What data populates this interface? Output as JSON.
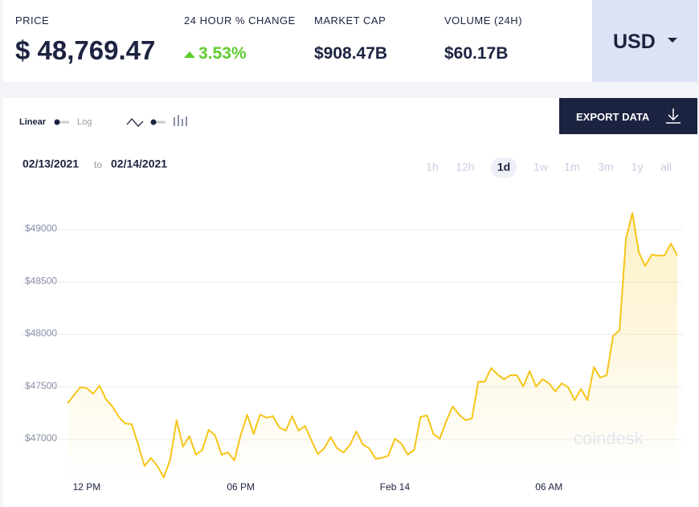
{
  "header": {
    "price_label": "PRICE",
    "price": "$ 48,769.47",
    "change_label": "24 HOUR % CHANGE",
    "change": "3.53%",
    "market_cap_label": "MARKET CAP",
    "market_cap": "$908.47B",
    "volume_label": "VOLUME (24H)",
    "volume": "$60.17B",
    "currency": "USD"
  },
  "controls": {
    "linear": "Linear",
    "log": "Log",
    "export": "EXPORT DATA",
    "date_from": "02/13/2021",
    "date_sep": "to",
    "date_to": "02/14/2021",
    "ranges": [
      "1h",
      "12h",
      "1d",
      "1w",
      "1m",
      "3m",
      "1y",
      "all"
    ],
    "active_range_index": 2
  },
  "chart_data": {
    "type": "line",
    "color": "#f5c518",
    "grid": true,
    "watermark": "coindesk",
    "ylim": [
      46600,
      49400
    ],
    "yticks": [
      {
        "value": 47000,
        "label": "$47000"
      },
      {
        "value": 47500,
        "label": "$47500"
      },
      {
        "value": 48000,
        "label": "$48000"
      },
      {
        "value": 48500,
        "label": "$48500"
      },
      {
        "value": 49000,
        "label": "$49000"
      }
    ],
    "categories": [
      null,
      null,
      null,
      "12 PM",
      null,
      null,
      null,
      null,
      null,
      null,
      null,
      null,
      null,
      null,
      null,
      null,
      null,
      null,
      null,
      null,
      null,
      null,
      null,
      null,
      null,
      null,
      null,
      "06 PM",
      null,
      null,
      null,
      null,
      null,
      null,
      null,
      null,
      null,
      null,
      null,
      null,
      null,
      null,
      null,
      null,
      null,
      null,
      null,
      null,
      null,
      null,
      null,
      "Feb 14",
      null,
      null,
      null,
      null,
      null,
      null,
      null,
      null,
      null,
      null,
      null,
      null,
      null,
      null,
      null,
      null,
      null,
      null,
      null,
      null,
      null,
      null,
      null,
      "06 AM",
      null,
      null,
      null,
      null,
      null,
      null,
      null,
      null,
      null,
      null,
      null,
      null,
      null,
      null,
      null,
      null,
      null,
      null,
      null,
      null
    ],
    "values": [
      47345,
      47421,
      47498,
      47490,
      47436,
      47513,
      47383,
      47314,
      47214,
      47153,
      47145,
      46954,
      46747,
      46824,
      46747,
      46640,
      46809,
      47184,
      46931,
      47031,
      46855,
      46900,
      47092,
      47038,
      46855,
      46877,
      46801,
      47046,
      47237,
      47054,
      47237,
      47207,
      47222,
      47115,
      47084,
      47222,
      47084,
      47130,
      46992,
      46862,
      46916,
      47023,
      46916,
      46877,
      46946,
      47077,
      46954,
      46916,
      46816,
      46824,
      46847,
      47008,
      46962,
      46855,
      46900,
      47214,
      47230,
      47054,
      47008,
      47176,
      47314,
      47237,
      47184,
      47199,
      47551,
      47551,
      47681,
      47620,
      47574,
      47612,
      47612,
      47505,
      47651,
      47505,
      47574,
      47536,
      47459,
      47536,
      47498,
      47375,
      47482,
      47375,
      47689,
      47590,
      47612,
      47988,
      48041,
      48914,
      49159,
      48784,
      48654,
      48761,
      48753,
      48753,
      48868,
      48753
    ]
  }
}
